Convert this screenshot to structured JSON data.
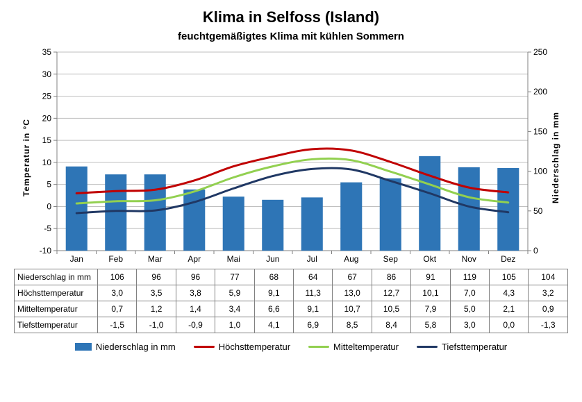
{
  "title": "Klima in Selfoss (Island)",
  "subtitle": "feuchtgemäßigtes Klima mit kühlen Sommern",
  "axis_left_label": "Temperatur  in  °C",
  "axis_right_label": "Niederschlag  in  mm",
  "months": [
    "Jan",
    "Feb",
    "Mar",
    "Apr",
    "Mai",
    "Jun",
    "Jul",
    "Aug",
    "Sep",
    "Okt",
    "Nov",
    "Dez"
  ],
  "rows": {
    "precip_label": "Niederschlag in mm",
    "high_label": "Höchsttemperatur",
    "mean_label": "Mitteltemperatur",
    "low_label": "Tiefsttemperatur"
  },
  "precip": [
    106,
    96,
    96,
    77,
    68,
    64,
    67,
    86,
    91,
    119,
    105,
    104
  ],
  "high": [
    3.0,
    3.5,
    3.8,
    5.9,
    9.1,
    11.3,
    13.0,
    12.7,
    10.1,
    7.0,
    4.3,
    3.2
  ],
  "mean": [
    0.7,
    1.2,
    1.4,
    3.4,
    6.6,
    9.1,
    10.7,
    10.5,
    7.9,
    5.0,
    2.1,
    0.9
  ],
  "low": [
    -1.5,
    -1.0,
    -0.9,
    1.0,
    4.1,
    6.9,
    8.5,
    8.4,
    5.8,
    3.0,
    0.0,
    -1.3
  ],
  "temp_axis": {
    "min": -10,
    "max": 35,
    "step": 5
  },
  "precip_axis": {
    "min": 0,
    "max": 250,
    "step": 50
  },
  "colors": {
    "bar": "#2e75b6",
    "high": "#c00000",
    "mean": "#92d050",
    "low": "#203864",
    "grid": "#bfbfbf",
    "axis": "#808080",
    "bg": "#ffffff"
  },
  "legend": {
    "precip": "Niederschlag in mm",
    "high": "Höchsttemperatur",
    "mean": "Mitteltemperatur",
    "low": "Tiefsttemperatur"
  },
  "style": {
    "title_fontsize": 22,
    "subtitle_fontsize": 15,
    "tick_fontsize": 12,
    "line_width": 3,
    "bar_width_ratio": 0.55
  },
  "decimal_sep": ","
}
